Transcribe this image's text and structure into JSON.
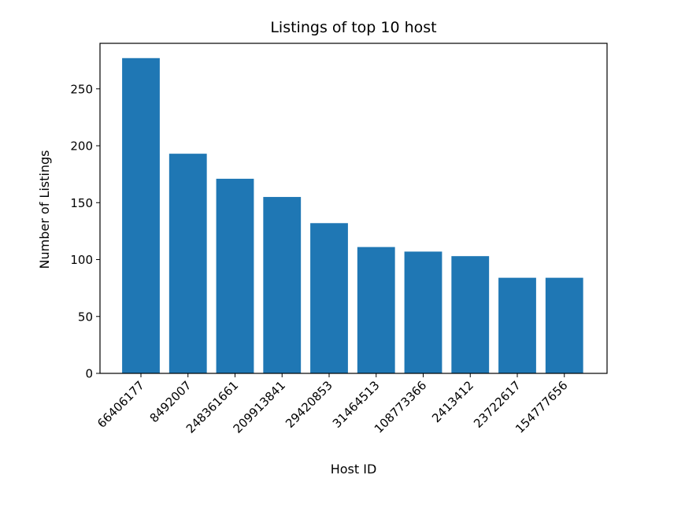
{
  "chart_data": {
    "type": "bar",
    "title": "Listings of top 10 host",
    "xlabel": "Host ID",
    "ylabel": "Number of Listings",
    "categories": [
      "66406177",
      "8492007",
      "248361661",
      "209913841",
      "29420853",
      "31464513",
      "108773366",
      "2413412",
      "23722617",
      "154777656"
    ],
    "values": [
      277,
      193,
      171,
      155,
      132,
      111,
      107,
      103,
      84,
      84
    ],
    "ylim": [
      0,
      290
    ],
    "yticks": [
      0,
      50,
      100,
      150,
      200,
      250
    ],
    "ytick_labels": [
      "0",
      "50",
      "100",
      "150",
      "200",
      "250"
    ],
    "bar_color": "#1f77b4",
    "grid": false,
    "legend": "none"
  }
}
